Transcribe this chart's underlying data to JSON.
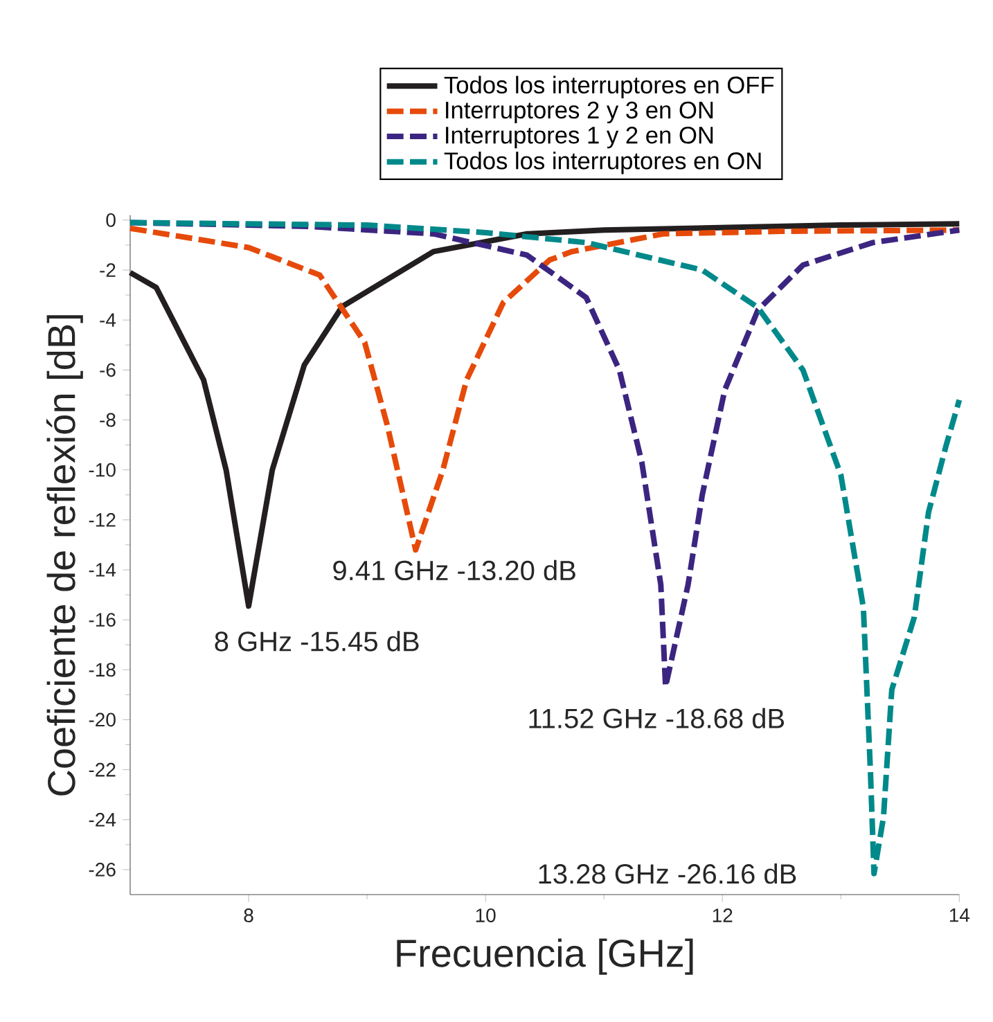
{
  "chart_data": {
    "type": "line",
    "xlabel": "Frecuencia [GHz]",
    "ylabel": "Coeficiente de reflexión [dB]",
    "xlim": [
      7,
      14
    ],
    "ylim": [
      -27,
      0.2
    ],
    "xticks": [
      8,
      10,
      12,
      14
    ],
    "yticks": [
      0,
      -2,
      -4,
      -6,
      -8,
      -10,
      -12,
      -14,
      -16,
      -18,
      -20,
      -22,
      -24,
      -26
    ],
    "legend": "top",
    "grid": false,
    "series": [
      {
        "name": "Todos los interruptores en OFF",
        "color": "#231f20",
        "line_style": "solid",
        "x": [
          7,
          7.22,
          7.62,
          7.81,
          8,
          8.2,
          8.47,
          8.79,
          9.56,
          10.35,
          11,
          12,
          13,
          14
        ],
        "values": [
          -2.1,
          -2.7,
          -6.4,
          -10,
          -15.45,
          -10,
          -5.8,
          -3.46,
          -1.26,
          -0.55,
          -0.4,
          -0.3,
          -0.2,
          -0.15
        ]
      },
      {
        "name": "Interruptores 2 y 3 en ON",
        "color": "#e64a0a",
        "line_style": "dashed",
        "x": [
          7,
          8,
          8.6,
          8.98,
          9.17,
          9.41,
          9.64,
          9.84,
          10.15,
          10.54,
          10.73,
          11.5,
          12.5,
          14
        ],
        "values": [
          -0.33,
          -1.1,
          -2.2,
          -4.9,
          -8.2,
          -13.2,
          -10,
          -6.4,
          -3.3,
          -1.6,
          -1.26,
          -0.55,
          -0.45,
          -0.4
        ]
      },
      {
        "name": "Interruptores 1 y 2 en ON",
        "color": "#3c2580",
        "line_style": "dashed",
        "x": [
          7,
          8.5,
          9.56,
          10.35,
          10.85,
          11.13,
          11.32,
          11.48,
          11.52,
          11.71,
          11.83,
          12.02,
          12.3,
          12.68,
          13.27,
          14
        ],
        "values": [
          -0.1,
          -0.25,
          -0.55,
          -1.4,
          -3.1,
          -6,
          -9.7,
          -14.6,
          -18.68,
          -14.6,
          -11,
          -6.8,
          -3.6,
          -1.8,
          -0.9,
          -0.4
        ]
      },
      {
        "name": "Todos los interruptores en ON",
        "color": "#00898a",
        "line_style": "dashed",
        "x": [
          7,
          9,
          10,
          10.85,
          11.83,
          12.3,
          12.68,
          13,
          13.19,
          13.25,
          13.28,
          13.36,
          13.43,
          13.62,
          13.74,
          13.89,
          14
        ],
        "values": [
          -0.1,
          -0.2,
          -0.5,
          -0.9,
          -2,
          -3.5,
          -6,
          -10.2,
          -15.5,
          -22.1,
          -26.16,
          -23.9,
          -18.8,
          -15.9,
          -11.7,
          -9,
          -7.2
        ]
      }
    ],
    "annotations": [
      {
        "text": "8 GHz  -15.45 dB",
        "x": 8,
        "y": -15.45
      },
      {
        "text": "9.41 GHz  -13.20 dB",
        "x": 9.41,
        "y": -13.2
      },
      {
        "text": "11.52 GHz  -18.68 dB",
        "x": 11.52,
        "y": -18.68
      },
      {
        "text": "13.28 GHz  -26.16 dB",
        "x": 13.28,
        "y": -26.16
      }
    ]
  }
}
